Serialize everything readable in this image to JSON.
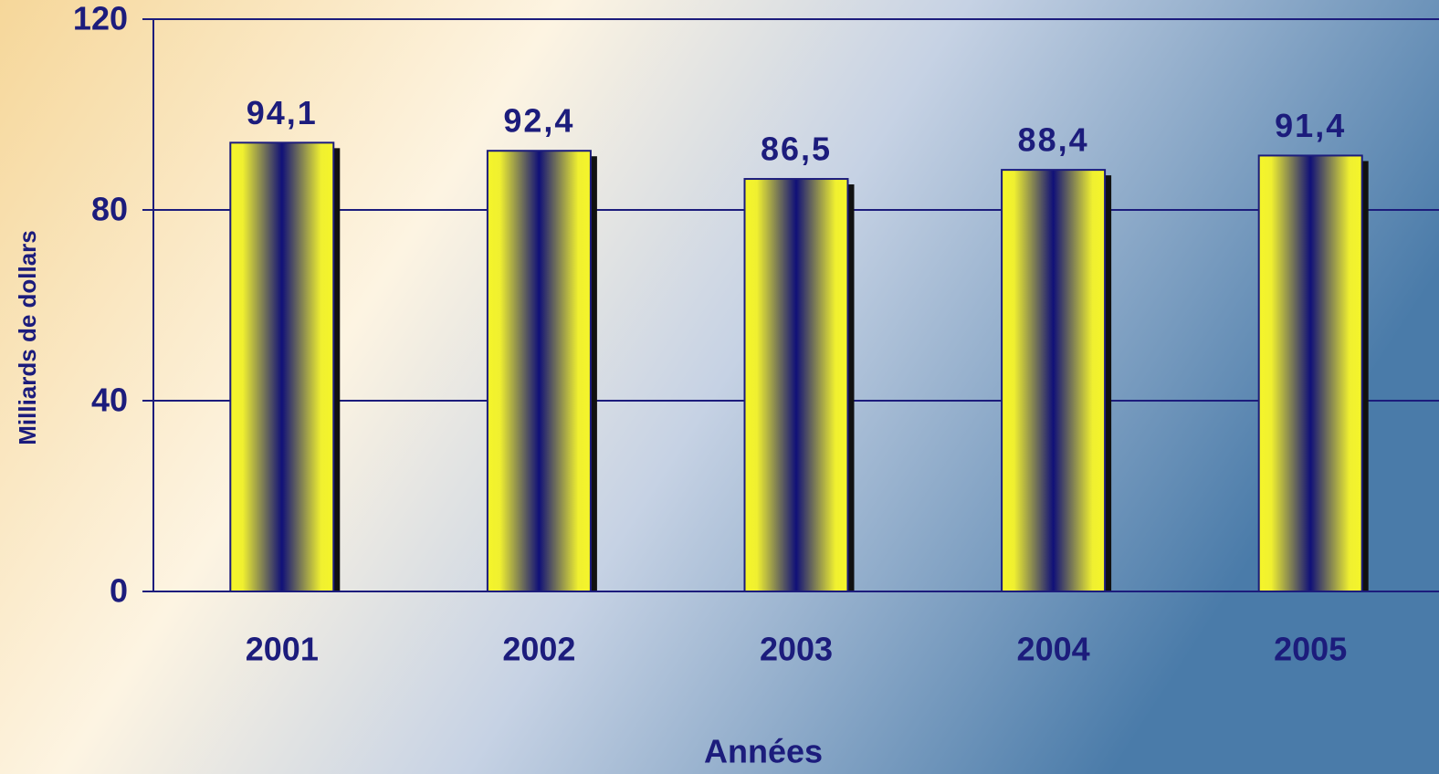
{
  "chart_data": {
    "type": "bar",
    "categories": [
      "2001",
      "2002",
      "2003",
      "2004",
      "2005"
    ],
    "values": [
      94.1,
      92.4,
      86.5,
      88.4,
      91.4
    ],
    "value_labels": [
      "94,1",
      "92,4",
      "86,5",
      "88,4",
      "91,4"
    ],
    "color": "#f5f52a",
    "xlabel": "Années",
    "ylabel": "Milliards de dollars",
    "ylim": [
      0,
      120
    ],
    "yticks": [
      0,
      40,
      80,
      120
    ],
    "grid": true
  }
}
